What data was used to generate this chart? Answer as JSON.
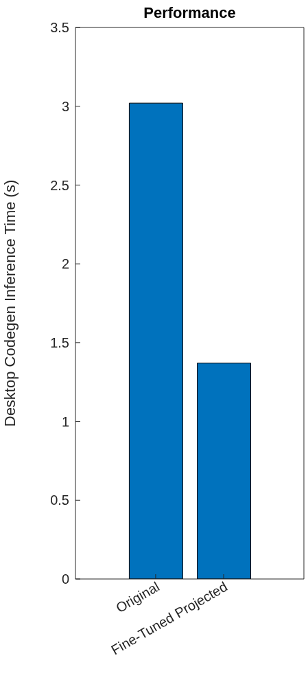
{
  "chart_data": {
    "type": "bar",
    "title": "Performance",
    "ylabel": "Desktop Codegen Inference Time (s)",
    "categories": [
      "Original",
      "Fine-Tuned Projected"
    ],
    "values": [
      3.02,
      1.37
    ],
    "color": "#0072bd",
    "ylim": [
      0,
      3.5
    ],
    "yticks": [
      0,
      0.5,
      1,
      1.5,
      2,
      2.5,
      3,
      3.5
    ]
  }
}
